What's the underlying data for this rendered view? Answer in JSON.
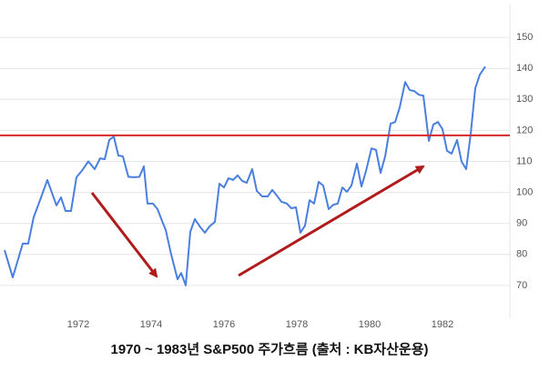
{
  "chart_data": {
    "type": "line",
    "title": "1970 ~ 1983년  S&P500  주가흐름  (출처 : KB자산운용)",
    "xlim": [
      1969.85,
      1983.85
    ],
    "xticks": [
      1972,
      1974,
      1976,
      1978,
      1980,
      1982
    ],
    "ylim": [
      60,
      160
    ],
    "yticks": [
      70,
      80,
      90,
      100,
      110,
      120,
      130,
      140,
      150
    ],
    "grid": true,
    "reference_line": {
      "value": 118.4,
      "color": "#d62728"
    },
    "series": [
      {
        "name": "S&P500",
        "color": "#4a7fe0",
        "x": [
          1969.975,
          1970.2,
          1970.475,
          1970.625,
          1970.775,
          1970.95,
          1971.15,
          1971.4,
          1971.525,
          1971.65,
          1971.8,
          1971.95,
          1972.1,
          1972.275,
          1972.45,
          1972.6,
          1972.725,
          1972.85,
          1972.975,
          1973.1,
          1973.225,
          1973.375,
          1973.525,
          1973.675,
          1973.8,
          1973.9,
          1974.05,
          1974.175,
          1974.3,
          1974.4,
          1974.55,
          1974.725,
          1974.825,
          1974.95,
          1975.075,
          1975.2,
          1975.35,
          1975.475,
          1975.6,
          1975.75,
          1975.875,
          1976.0,
          1976.125,
          1976.25,
          1976.375,
          1976.5,
          1976.625,
          1976.775,
          1976.9,
          1977.05,
          1977.2,
          1977.325,
          1977.45,
          1977.575,
          1977.725,
          1977.85,
          1977.975,
          1978.1,
          1978.225,
          1978.35,
          1978.475,
          1978.6,
          1978.725,
          1978.875,
          1979.0,
          1979.125,
          1979.25,
          1979.375,
          1979.5,
          1979.65,
          1979.775,
          1979.9,
          1980.05,
          1980.175,
          1980.3,
          1980.425,
          1980.575,
          1980.7,
          1980.825,
          1980.975,
          1981.1,
          1981.225,
          1981.35,
          1981.475,
          1981.625,
          1981.75,
          1981.875,
          1982.0,
          1982.125,
          1982.25,
          1982.4,
          1982.525,
          1982.65,
          1982.775,
          1982.9,
          1983.025,
          1983.175
        ],
        "values": [
          81.4,
          72.6,
          83.5,
          83.5,
          92,
          97.5,
          104,
          95.8,
          98.4,
          94,
          94,
          104.9,
          107,
          110,
          107.5,
          111,
          110.7,
          116.9,
          118,
          111.9,
          111.6,
          105,
          104.9,
          105,
          108.4,
          96.4,
          96.4,
          94.6,
          90.8,
          87.9,
          80,
          72,
          74,
          70,
          87.3,
          91.4,
          88.8,
          87,
          89,
          90.5,
          102.8,
          101.6,
          104.6,
          104,
          105.5,
          103.7,
          103.1,
          107.5,
          100.5,
          98.7,
          98.7,
          100.8,
          99,
          97,
          96.4,
          94.9,
          95.2,
          87,
          89.3,
          97.5,
          96.4,
          103.4,
          102.2,
          94.6,
          96,
          96.4,
          101.6,
          100.2,
          102.2,
          109.3,
          101.9,
          106.9,
          114.2,
          113.7,
          106.3,
          111.6,
          122.2,
          122.7,
          127.4,
          135.6,
          133,
          132.7,
          131.5,
          131.2,
          116.6,
          121.9,
          122.7,
          120.4,
          113.4,
          112.5,
          116.9,
          109.9,
          107.5,
          118.9,
          133.6,
          138,
          140.6
        ]
      }
    ]
  }
}
